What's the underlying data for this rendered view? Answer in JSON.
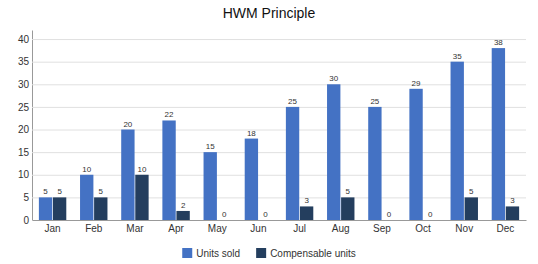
{
  "chart_data": {
    "type": "bar",
    "title": "HWM Principle",
    "categories": [
      "Jan",
      "Feb",
      "Mar",
      "Apr",
      "May",
      "Jun",
      "Jul",
      "Aug",
      "Sep",
      "Oct",
      "Nov",
      "Dec"
    ],
    "series": [
      {
        "name": "Units sold",
        "color": "#4472C4",
        "values": [
          5,
          10,
          20,
          22,
          15,
          18,
          25,
          30,
          25,
          29,
          35,
          38
        ]
      },
      {
        "name": "Compensable units",
        "color": "#243E5E",
        "values": [
          5,
          5,
          10,
          2,
          0,
          0,
          3,
          5,
          0,
          0,
          5,
          3
        ]
      }
    ],
    "ylim": [
      0,
      42
    ],
    "yticks": [
      0,
      5,
      10,
      15,
      20,
      25,
      30,
      35,
      40
    ],
    "grid": true,
    "legend": "bottom",
    "data_labels": true
  }
}
